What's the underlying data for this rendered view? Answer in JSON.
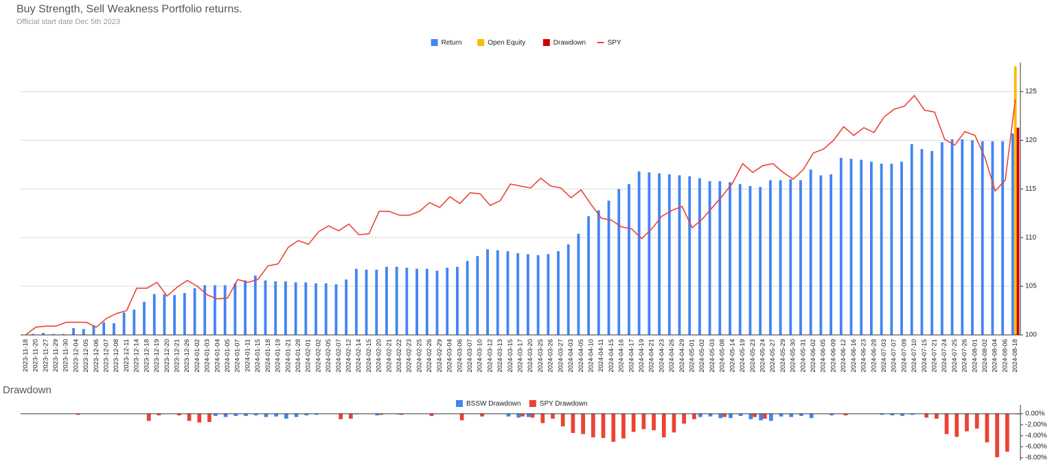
{
  "chart_data": [
    {
      "type": "bar",
      "title": "Buy Strength, Sell Weakness Portfolio returns.",
      "subtitle": "Official start date Dec 5th 2023",
      "categories": [
        "2023-11-18",
        "2023-11-20",
        "2023-11-27",
        "2023-11-29",
        "2023-11-30",
        "2023-12-04",
        "2023-12-05",
        "2023-12-06",
        "2023-12-07",
        "2023-12-08",
        "2023-12-11",
        "2023-12-14",
        "2023-12-18",
        "2023-12-19",
        "2023-12-20",
        "2023-12-21",
        "2023-12-26",
        "2024-01-02",
        "2024-01-03",
        "2024-01-04",
        "2024-01-05",
        "2024-01-07",
        "2024-01-11",
        "2024-01-15",
        "2024-01-18",
        "2024-01-19",
        "2024-01-21",
        "2024-01-28",
        "2024-02-01",
        "2024-02-02",
        "2024-02-05",
        "2024-02-07",
        "2024-02-12",
        "2024-02-14",
        "2024-02-15",
        "2024-02-20",
        "2024-02-21",
        "2024-02-22",
        "2024-02-23",
        "2024-02-25",
        "2024-02-26",
        "2024-02-29",
        "2024-03-04",
        "2024-03-06",
        "2024-03-07",
        "2024-03-10",
        "2024-03-12",
        "2024-03-13",
        "2024-03-15",
        "2024-03-17",
        "2024-03-20",
        "2024-03-25",
        "2024-03-26",
        "2024-03-27",
        "2024-04-03",
        "2024-04-05",
        "2024-04-10",
        "2024-04-11",
        "2024-04-15",
        "2024-04-16",
        "2024-04-17",
        "2024-04-19",
        "2024-04-21",
        "2024-04-23",
        "2024-04-26",
        "2024-04-29",
        "2024-05-01",
        "2024-05-02",
        "2024-05-03",
        "2024-05-08",
        "2024-05-14",
        "2024-05-19",
        "2024-05-23",
        "2024-05-24",
        "2024-05-27",
        "2024-05-29",
        "2024-05-30",
        "2024-05-31",
        "2024-06-02",
        "2024-06-05",
        "2024-06-09",
        "2024-06-12",
        "2024-06-16",
        "2024-06-23",
        "2024-06-28",
        "2024-07-03",
        "2024-07-07",
        "2024-07-09",
        "2024-07-10",
        "2024-07-15",
        "2024-07-21",
        "2024-07-24",
        "2024-07-25",
        "2024-07-26",
        "2024-08-01",
        "2024-08-02",
        "2024-08-04",
        "2024-08-06",
        "2024-08-18"
      ],
      "series": [
        {
          "name": "Return",
          "color": "#4285f4",
          "values": [
            100.0,
            100.1,
            100.2,
            100.1,
            100.1,
            100.7,
            100.6,
            101.0,
            101.3,
            101.2,
            102.3,
            102.6,
            103.4,
            104.2,
            104.2,
            104.1,
            104.3,
            104.8,
            105.1,
            105.1,
            105.1,
            105.3,
            105.6,
            106.1,
            105.6,
            105.5,
            105.5,
            105.4,
            105.4,
            105.3,
            105.3,
            105.2,
            105.7,
            106.8,
            106.7,
            106.7,
            107.0,
            107.0,
            106.9,
            106.8,
            106.8,
            106.6,
            106.9,
            107.0,
            107.6,
            108.1,
            108.8,
            108.7,
            108.6,
            108.4,
            108.3,
            108.2,
            108.3,
            108.6,
            109.3,
            110.4,
            112.2,
            112.8,
            113.8,
            115.0,
            115.5,
            116.8,
            116.7,
            116.6,
            116.5,
            116.4,
            116.3,
            116.1,
            115.8,
            115.8,
            115.7,
            115.5,
            115.3,
            115.2,
            115.9,
            115.9,
            116.0,
            115.9,
            117.0,
            116.4,
            116.5,
            118.2,
            118.1,
            118.0,
            117.8,
            117.6,
            117.6,
            117.8,
            119.6,
            119.1,
            118.9,
            119.8,
            120.1,
            120.1,
            120.0,
            119.9,
            119.9,
            119.9,
            120.7
          ]
        },
        {
          "name": "Open Equity",
          "color": "#fbbc04",
          "values": [
            null,
            null,
            null,
            null,
            null,
            null,
            null,
            null,
            null,
            null,
            null,
            null,
            null,
            null,
            null,
            null,
            null,
            null,
            null,
            null,
            null,
            null,
            null,
            null,
            null,
            null,
            null,
            null,
            null,
            null,
            null,
            null,
            null,
            null,
            null,
            null,
            null,
            null,
            null,
            null,
            null,
            null,
            null,
            null,
            null,
            null,
            null,
            null,
            null,
            null,
            null,
            null,
            null,
            null,
            null,
            null,
            null,
            null,
            null,
            null,
            null,
            null,
            null,
            null,
            null,
            null,
            null,
            null,
            null,
            null,
            null,
            null,
            null,
            null,
            null,
            null,
            null,
            null,
            null,
            null,
            null,
            null,
            null,
            null,
            null,
            null,
            null,
            null,
            null,
            null,
            null,
            null,
            null,
            null,
            null,
            null,
            null,
            null,
            127.6
          ]
        },
        {
          "name": "Drawdown",
          "color": "#cc0000",
          "values": [
            null,
            null,
            null,
            null,
            null,
            null,
            null,
            null,
            null,
            null,
            null,
            null,
            null,
            null,
            null,
            null,
            null,
            null,
            null,
            null,
            null,
            null,
            null,
            null,
            null,
            null,
            null,
            null,
            null,
            null,
            null,
            null,
            null,
            null,
            null,
            null,
            null,
            null,
            null,
            null,
            null,
            null,
            null,
            null,
            null,
            null,
            null,
            null,
            null,
            null,
            null,
            null,
            null,
            null,
            null,
            null,
            null,
            null,
            null,
            null,
            null,
            null,
            null,
            null,
            null,
            null,
            null,
            null,
            null,
            null,
            null,
            null,
            null,
            null,
            null,
            null,
            null,
            null,
            null,
            null,
            null,
            null,
            null,
            null,
            null,
            null,
            null,
            null,
            null,
            null,
            null,
            null,
            null,
            null,
            null,
            null,
            null,
            null,
            121.3
          ]
        },
        {
          "name": "SPY",
          "color": "#ea4335",
          "type": "line",
          "values": [
            100.0,
            100.8,
            100.9,
            100.9,
            101.3,
            101.3,
            101.3,
            100.8,
            101.7,
            102.2,
            102.5,
            104.8,
            104.8,
            105.4,
            104.0,
            104.9,
            105.6,
            105.0,
            104.1,
            103.7,
            103.8,
            105.7,
            105.4,
            105.7,
            107.1,
            107.3,
            109.0,
            109.7,
            109.3,
            110.6,
            111.2,
            110.7,
            111.4,
            110.3,
            110.4,
            112.7,
            112.7,
            112.3,
            112.3,
            112.7,
            113.6,
            113.1,
            114.2,
            113.5,
            114.6,
            114.5,
            113.3,
            113.8,
            115.5,
            115.3,
            115.1,
            116.1,
            115.3,
            115.1,
            114.1,
            114.9,
            113.4,
            112.0,
            111.8,
            111.1,
            110.9,
            109.9,
            110.9,
            112.2,
            112.8,
            113.2,
            111.0,
            111.9,
            113.1,
            114.3,
            115.6,
            117.6,
            116.7,
            117.4,
            117.6,
            116.7,
            116.0,
            117.0,
            118.7,
            119.1,
            120.0,
            121.4,
            120.5,
            121.3,
            120.8,
            122.4,
            123.2,
            123.5,
            124.6,
            123.1,
            122.9,
            120.1,
            119.5,
            120.9,
            120.5,
            118.2,
            114.8,
            115.9,
            124.2
          ]
        }
      ],
      "ylim": [
        100,
        128
      ],
      "yticks": [
        100,
        105,
        110,
        115,
        120,
        125
      ],
      "grid": true
    },
    {
      "type": "bar",
      "title": "Drawdown",
      "series": [
        {
          "name": "BSSW Drawdown",
          "color": "#4285f4",
          "values": [
            0,
            0,
            0,
            0,
            0,
            0,
            0,
            0,
            0,
            0,
            0,
            0,
            0,
            0,
            0,
            0,
            0,
            0,
            0,
            -0.4,
            -0.6,
            -0.4,
            -0.4,
            -0.3,
            -0.6,
            -0.5,
            -0.9,
            -0.6,
            -0.3,
            -0.2,
            0,
            0,
            0,
            -0.1,
            0,
            -0.3,
            0,
            -0.1,
            0,
            0,
            0,
            0,
            0,
            0,
            0,
            0,
            0,
            0,
            -0.5,
            -0.7,
            -0.6,
            0,
            0,
            0,
            0,
            0,
            0,
            0,
            0,
            0,
            0,
            0,
            0,
            0,
            0,
            0,
            0,
            -0.6,
            -0.5,
            -0.8,
            -0.8,
            -0.4,
            -1.0,
            -1.2,
            -1.3,
            -0.5,
            -0.6,
            -0.4,
            -0.8,
            0,
            -0.3,
            0,
            0,
            0,
            0,
            -0.2,
            -0.3,
            -0.4,
            -0.2,
            0,
            0,
            0,
            0,
            0,
            0,
            0,
            0,
            0,
            0
          ]
        },
        {
          "name": "SPY Drawdown",
          "color": "#ea4335",
          "values": [
            0,
            0,
            0,
            0,
            0,
            -0.2,
            0,
            0,
            0,
            0,
            0,
            0,
            -1.3,
            -0.3,
            0,
            -0.3,
            -1.3,
            -1.6,
            -1.5,
            0,
            0,
            0,
            0,
            0,
            0,
            0,
            0,
            0,
            0,
            0,
            0,
            -1.0,
            -0.9,
            0,
            0,
            -0.2,
            0,
            -0.2,
            0,
            0,
            -0.4,
            0,
            0,
            -1.2,
            0,
            -0.5,
            0,
            0,
            0,
            -0.5,
            -0.7,
            -1.7,
            -0.9,
            -2.3,
            -3.5,
            -3.7,
            -4.3,
            -4.4,
            -5.1,
            -4.5,
            -3.3,
            -2.8,
            -3.0,
            -4.3,
            -3.4,
            -1.8,
            -1.0,
            0,
            0,
            -0.6,
            0,
            0,
            -0.6,
            -0.9,
            0,
            0,
            0,
            0,
            0,
            0,
            0,
            -0.3,
            0,
            0,
            0,
            0,
            0,
            0,
            0,
            -0.7,
            -0.9,
            -3.7,
            -4.2,
            -3.2,
            -2.7,
            -5.2,
            -7.9,
            -6.9,
            -0.1
          ]
        }
      ],
      "ylim": [
        -8.5,
        1.6
      ],
      "yticks": [
        {
          "value": 0,
          "label": "0.00%"
        },
        {
          "value": -2,
          "label": "-2.00%"
        },
        {
          "value": -4,
          "label": "-4.00%"
        },
        {
          "value": -6,
          "label": "-6.00%"
        },
        {
          "value": -8,
          "label": "-8.00%"
        }
      ],
      "grid": false
    }
  ]
}
